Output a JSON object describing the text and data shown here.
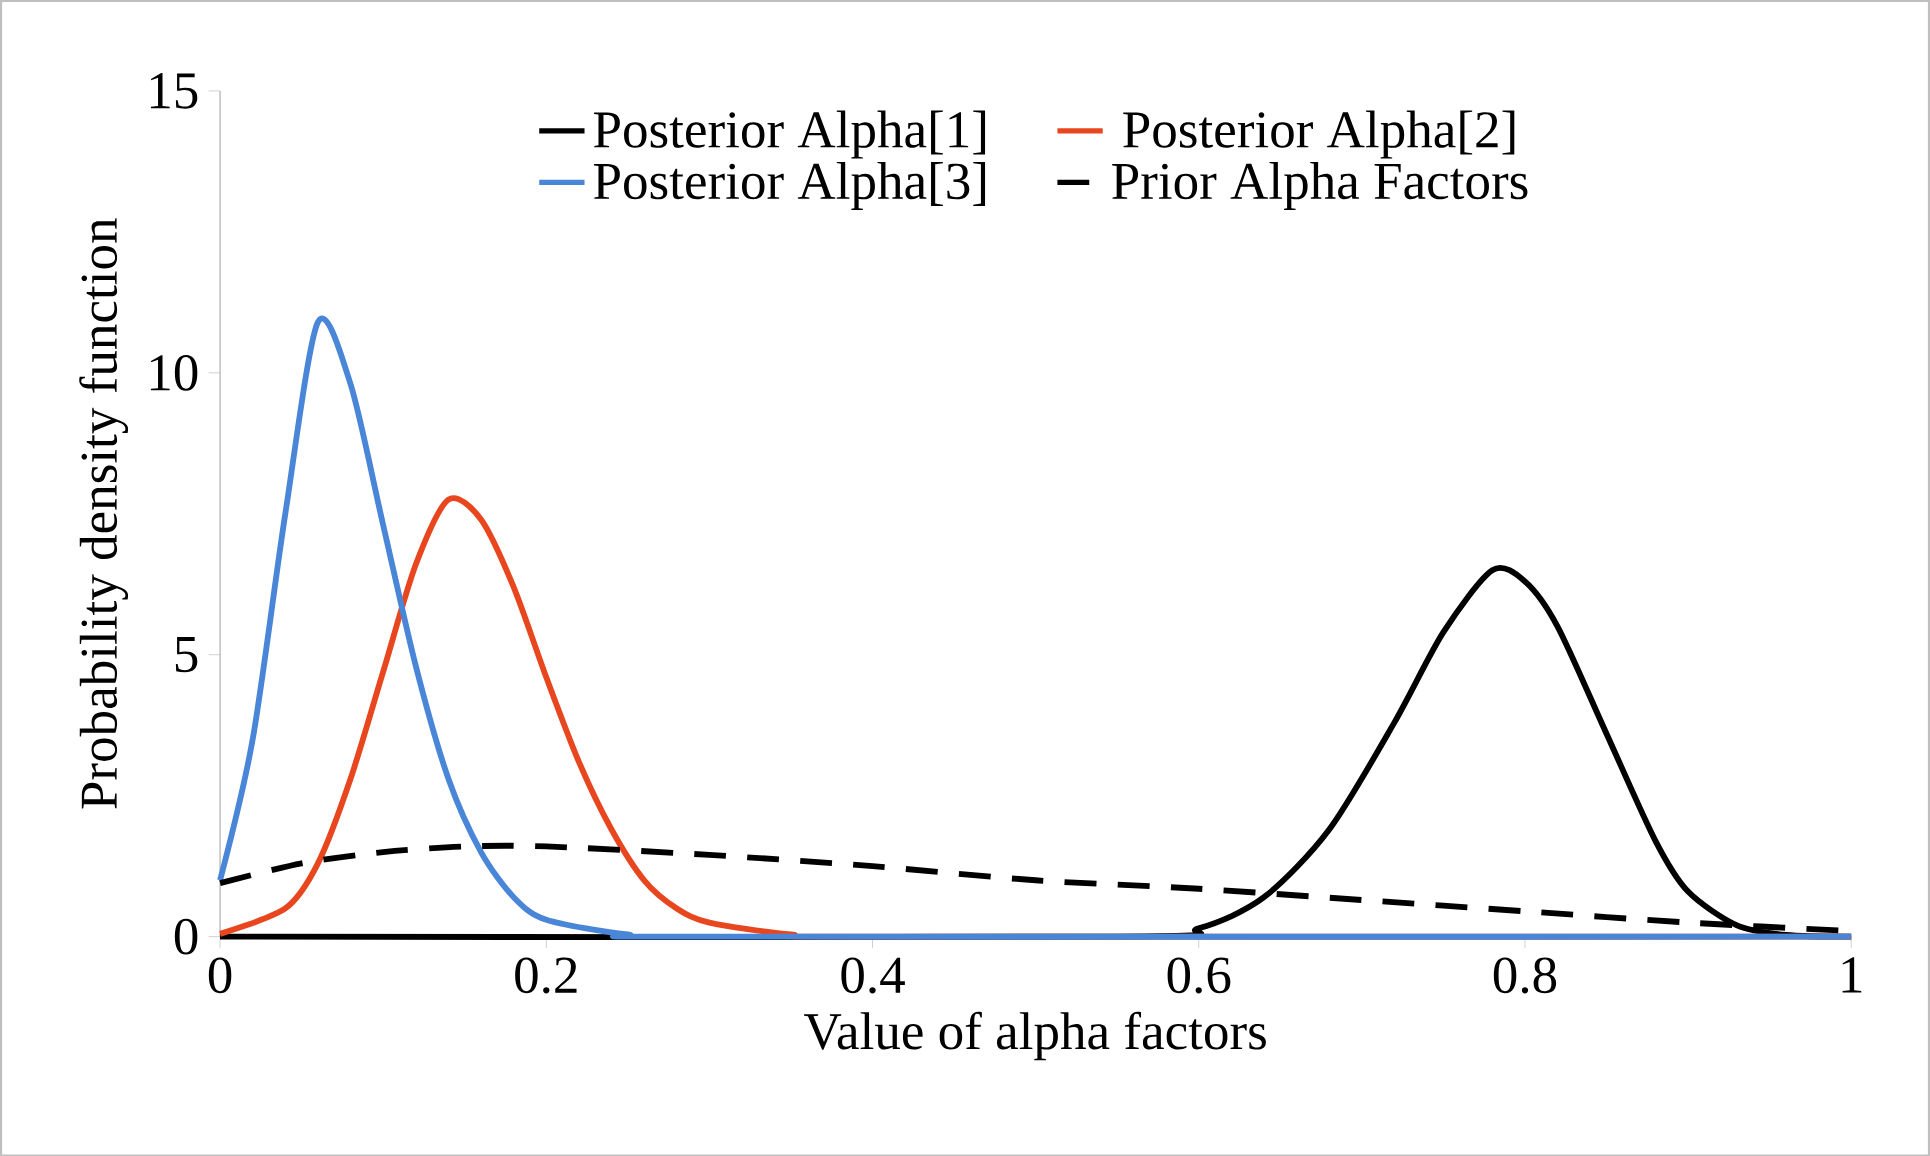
{
  "chart_data": {
    "type": "line",
    "xlabel": "Value of alpha factors",
    "ylabel": "Probability density function",
    "xlim": [
      0,
      1
    ],
    "ylim": [
      0,
      15
    ],
    "xticks": [
      0,
      0.2,
      0.4,
      0.6,
      0.8,
      1
    ],
    "yticks": [
      0,
      5,
      10,
      15
    ],
    "grid": false,
    "legend": "top",
    "marker": "none",
    "series": [
      {
        "name": "Posterior Alpha[1]",
        "color": "#000000",
        "line_style": "solid",
        "x": [
          0,
          0.55,
          0.6,
          0.64,
          0.68,
          0.72,
          0.75,
          0.78,
          0.8,
          0.82,
          0.85,
          0.88,
          0.9,
          0.93,
          0.96,
          1
        ],
        "values": [
          0,
          0,
          0.15,
          0.7,
          1.9,
          3.8,
          5.4,
          6.5,
          6.3,
          5.5,
          3.6,
          1.7,
          0.8,
          0.2,
          0.03,
          0
        ]
      },
      {
        "name": "Posterior Alpha[2]",
        "color": "#e8461e",
        "line_style": "solid",
        "x": [
          0,
          0.04,
          0.06,
          0.08,
          0.1,
          0.12,
          0.14,
          0.16,
          0.18,
          0.2,
          0.22,
          0.24,
          0.26,
          0.28,
          0.3,
          0.35,
          0.4,
          1
        ],
        "values": [
          0.05,
          0.5,
          1.3,
          2.8,
          4.7,
          6.6,
          7.75,
          7.4,
          6.2,
          4.6,
          3.1,
          1.9,
          1.0,
          0.5,
          0.25,
          0.04,
          0,
          0
        ]
      },
      {
        "name": "Posterior Alpha[3]",
        "color": "#4a86d8",
        "line_style": "solid",
        "x": [
          0,
          0.02,
          0.04,
          0.06,
          0.08,
          0.1,
          0.12,
          0.14,
          0.16,
          0.18,
          0.2,
          0.25,
          0.3,
          1
        ],
        "values": [
          1.0,
          3.5,
          7.5,
          10.9,
          9.8,
          7.3,
          4.8,
          2.8,
          1.5,
          0.7,
          0.3,
          0.04,
          0,
          0
        ]
      },
      {
        "name": "Prior Alpha Factors",
        "color": "#000000",
        "line_style": "dashed",
        "x": [
          0,
          0.05,
          0.1,
          0.15,
          0.2,
          0.3,
          0.4,
          0.5,
          0.6,
          0.7,
          0.8,
          0.9,
          1
        ],
        "values": [
          0.95,
          1.3,
          1.5,
          1.6,
          1.6,
          1.45,
          1.25,
          1.0,
          0.85,
          0.65,
          0.45,
          0.25,
          0.1
        ]
      }
    ]
  }
}
